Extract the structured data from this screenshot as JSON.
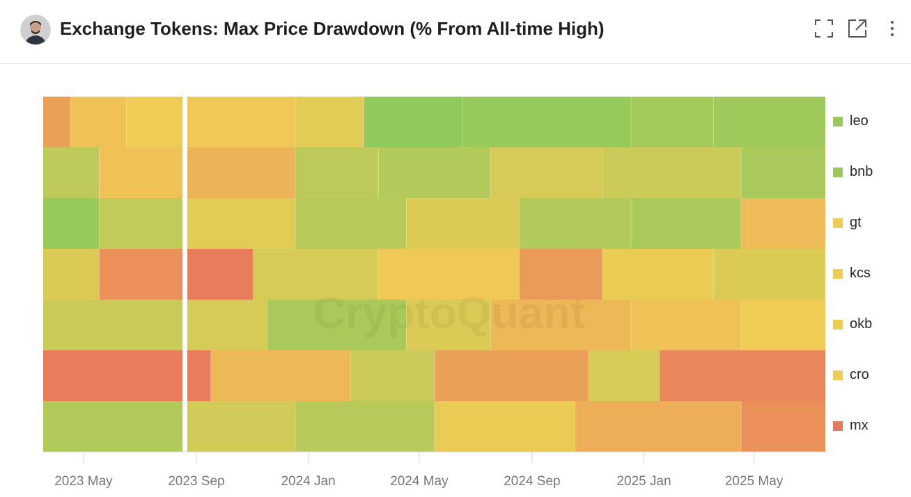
{
  "header": {
    "title": "Exchange Tokens: Max Price Drawdown (% From All-time High)",
    "expand_icon": "expand-icon",
    "open_icon": "external-link-icon",
    "more_icon": "more-vertical-icon"
  },
  "watermark": "CryptoQuant",
  "colors": {
    "low": "#72c85e",
    "mid": "#efcc55",
    "high": "#e7695c",
    "missing": "#f0f0f0"
  },
  "chart_data": {
    "type": "heatmap",
    "title": "Exchange Tokens: Max Price Drawdown (% From All-time High)",
    "xlabel": "",
    "ylabel": "",
    "x_range": [
      "2023-04-01",
      "2025-07-31"
    ],
    "x_ticks": [
      "2023 May",
      "2023 Sep",
      "2024 Jan",
      "2024 May",
      "2024 Sep",
      "2025 Jan",
      "2025 May"
    ],
    "legend_position": "right",
    "value_scale": "0 = at all-time high (green), 0.5 = mid drawdown (yellow), 1 = deepest drawdown (red)",
    "series": [
      {
        "name": "leo",
        "color": "#9bc75f",
        "segments": [
          [
            "2023-04-01",
            "2023-04-30",
            0.72
          ],
          [
            "2023-05-01",
            "2023-06-30",
            0.55
          ],
          [
            "2023-07-01",
            "2023-08-31",
            0.5
          ],
          [
            "2023-09-05",
            "2023-12-31",
            0.52
          ],
          [
            "2024-01-01",
            "2024-03-15",
            0.45
          ],
          [
            "2024-03-16",
            "2024-06-30",
            0.12
          ],
          [
            "2024-07-01",
            "2024-12-31",
            0.15
          ],
          [
            "2025-01-01",
            "2025-03-31",
            0.2
          ],
          [
            "2025-04-01",
            "2025-07-31",
            0.18
          ]
        ]
      },
      {
        "name": "bnb",
        "color": "#9bc75f",
        "segments": [
          [
            "2023-04-01",
            "2023-05-31",
            0.3
          ],
          [
            "2023-06-01",
            "2023-08-31",
            0.55
          ],
          [
            "2023-09-05",
            "2023-12-31",
            0.62
          ],
          [
            "2024-01-01",
            "2024-03-31",
            0.3
          ],
          [
            "2024-04-01",
            "2024-07-31",
            0.25
          ],
          [
            "2024-08-01",
            "2024-11-30",
            0.4
          ],
          [
            "2024-12-01",
            "2025-04-30",
            0.35
          ],
          [
            "2025-05-01",
            "2025-07-31",
            0.22
          ]
        ]
      },
      {
        "name": "gt",
        "color": "#efcc55",
        "segments": [
          [
            "2023-04-01",
            "2023-05-31",
            0.15
          ],
          [
            "2023-06-01",
            "2023-08-31",
            0.32
          ],
          [
            "2023-09-05",
            "2023-12-31",
            0.45
          ],
          [
            "2024-01-01",
            "2024-04-30",
            0.28
          ],
          [
            "2024-05-01",
            "2024-08-31",
            0.42
          ],
          [
            "2024-09-01",
            "2024-12-31",
            0.25
          ],
          [
            "2025-01-01",
            "2025-04-30",
            0.22
          ],
          [
            "2025-05-01",
            "2025-07-31",
            0.58
          ]
        ]
      },
      {
        "name": "kcs",
        "color": "#efcc55",
        "segments": [
          [
            "2023-04-01",
            "2023-05-31",
            0.42
          ],
          [
            "2023-06-01",
            "2023-08-31",
            0.8
          ],
          [
            "2023-09-05",
            "2023-11-15",
            0.9
          ],
          [
            "2023-11-16",
            "2024-03-31",
            0.4
          ],
          [
            "2024-04-01",
            "2024-08-31",
            0.52
          ],
          [
            "2024-09-01",
            "2024-11-30",
            0.75
          ],
          [
            "2024-12-01",
            "2025-03-31",
            0.48
          ],
          [
            "2025-04-01",
            "2025-07-31",
            0.42
          ]
        ]
      },
      {
        "name": "okb",
        "color": "#efcc55",
        "segments": [
          [
            "2023-04-01",
            "2023-08-31",
            0.35
          ],
          [
            "2023-09-05",
            "2023-11-30",
            0.4
          ],
          [
            "2023-12-01",
            "2024-04-30",
            0.22
          ],
          [
            "2024-05-01",
            "2024-07-31",
            0.42
          ],
          [
            "2024-08-01",
            "2024-12-31",
            0.6
          ],
          [
            "2025-01-01",
            "2025-04-30",
            0.55
          ],
          [
            "2025-05-01",
            "2025-07-31",
            0.5
          ]
        ]
      },
      {
        "name": "cro",
        "color": "#efcc55",
        "segments": [
          [
            "2023-04-01",
            "2023-09-30",
            0.9
          ],
          [
            "2023-10-01",
            "2024-02-29",
            0.6
          ],
          [
            "2024-03-01",
            "2024-05-31",
            0.35
          ],
          [
            "2024-06-01",
            "2024-11-15",
            0.72
          ],
          [
            "2024-11-16",
            "2025-01-31",
            0.4
          ],
          [
            "2025-02-01",
            "2025-07-31",
            0.85
          ]
        ]
      },
      {
        "name": "mx",
        "color": "#e7775f",
        "segments": [
          [
            "2023-04-01",
            "2023-08-31",
            0.25
          ],
          [
            "2023-09-05",
            "2023-12-31",
            0.38
          ],
          [
            "2024-01-01",
            "2024-05-31",
            0.28
          ],
          [
            "2024-06-01",
            "2024-10-31",
            0.48
          ],
          [
            "2024-11-01",
            "2025-04-30",
            0.65
          ],
          [
            "2025-05-01",
            "2025-07-31",
            0.8
          ]
        ]
      }
    ]
  }
}
